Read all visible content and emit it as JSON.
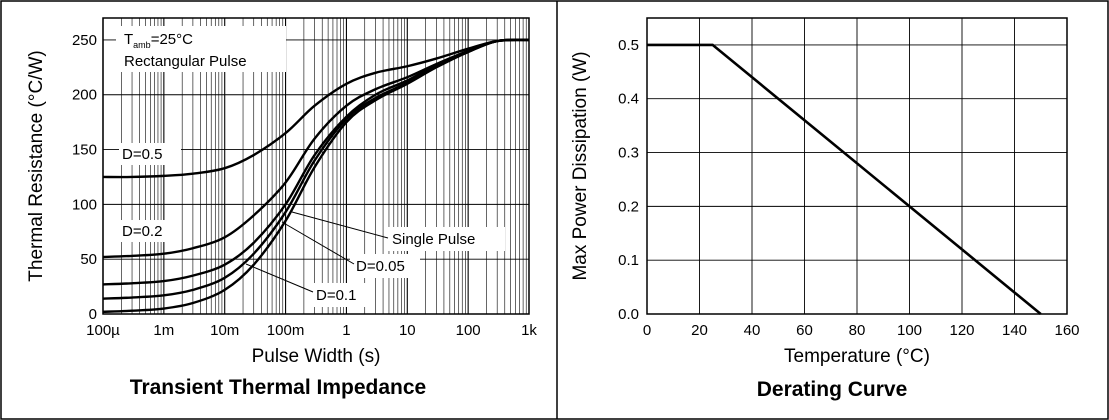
{
  "chart_data": [
    {
      "type": "line",
      "title": "Transient Thermal Impedance",
      "xlabel": "Pulse Width (s)",
      "ylabel": "Thermal Resistance (°C/W)",
      "x_scale": "log",
      "xlim": [
        0.0001,
        1000
      ],
      "ylim": [
        0,
        270
      ],
      "x_ticks": [
        0.0001,
        0.001,
        0.01,
        0.1,
        1,
        10,
        100,
        1000
      ],
      "x_tick_labels": [
        "100µ",
        "1m",
        "10m",
        "100m",
        "1",
        "10",
        "100",
        "1k"
      ],
      "y_ticks": [
        0,
        50,
        100,
        150,
        200,
        250
      ],
      "y_tick_labels": [
        "0",
        "50",
        "100",
        "150",
        "200",
        "250"
      ],
      "grid": true,
      "x": [
        0.0001,
        0.0003,
        0.001,
        0.003,
        0.01,
        0.03,
        0.1,
        0.3,
        1,
        3,
        10,
        30,
        100,
        300,
        1000
      ],
      "series": [
        {
          "name": "D=0.5",
          "values": [
            125,
            125,
            126,
            128,
            133,
            145,
            165,
            190,
            210,
            220,
            226,
            233,
            242,
            249,
            250
          ]
        },
        {
          "name": "D=0.2",
          "values": [
            52,
            53,
            55,
            60,
            70,
            90,
            120,
            160,
            190,
            205,
            216,
            228,
            240,
            249,
            250
          ]
        },
        {
          "name": "D=0.1",
          "values": [
            27,
            28,
            30,
            35,
            45,
            65,
            100,
            145,
            180,
            200,
            213,
            227,
            240,
            249,
            250
          ]
        },
        {
          "name": "D=0.05",
          "values": [
            14,
            15,
            17,
            22,
            33,
            55,
            93,
            140,
            178,
            197,
            211,
            226,
            239,
            249,
            250
          ]
        },
        {
          "name": "Single Pulse",
          "values": [
            2,
            3,
            5,
            10,
            22,
            45,
            85,
            134,
            175,
            195,
            210,
            225,
            239,
            249,
            250
          ]
        }
      ],
      "annotations": {
        "t_amb_main": "T",
        "t_amb_sub": "amb",
        "t_amb_rest": "=25°C",
        "pulse_type": "Rectangular Pulse",
        "d05": "D=0.5",
        "d02": "D=0.2",
        "single": "Single Pulse",
        "d005": "D=0.05",
        "d01": "D=0.1"
      }
    },
    {
      "type": "line",
      "title": "Derating Curve",
      "xlabel": "Temperature (°C)",
      "ylabel": "Max Power Dissipation (W)",
      "xlim": [
        0,
        160
      ],
      "ylim": [
        0,
        0.55
      ],
      "x_ticks": [
        0,
        20,
        40,
        60,
        80,
        100,
        120,
        140,
        160
      ],
      "y_ticks": [
        0.0,
        0.1,
        0.2,
        0.3,
        0.4,
        0.5
      ],
      "y_tick_labels": [
        "0.0",
        "0.1",
        "0.2",
        "0.3",
        "0.4",
        "0.5"
      ],
      "grid": true,
      "x": [
        0,
        25,
        150
      ],
      "values": [
        0.5,
        0.5,
        0.0
      ]
    }
  ]
}
